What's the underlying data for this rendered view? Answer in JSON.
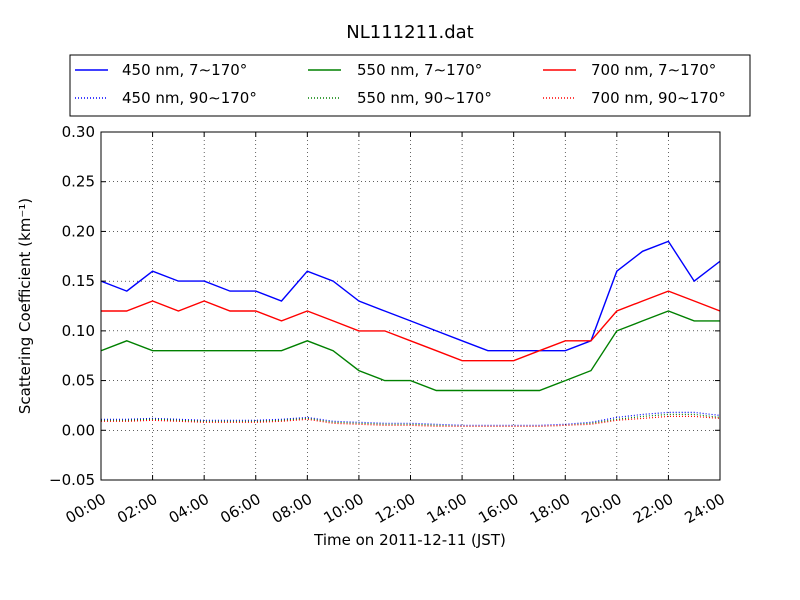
{
  "chart_data": {
    "type": "line",
    "title": "NL111211.dat",
    "xlabel": "Time on 2011-12-11 (JST)",
    "ylabel": "Scattering Coefficient (km⁻¹)",
    "xlim": [
      "00:00",
      "24:00"
    ],
    "ylim": [
      -0.05,
      0.3
    ],
    "grid": true,
    "legend_placement": "top",
    "x_ticks": [
      "00:00",
      "02:00",
      "04:00",
      "06:00",
      "08:00",
      "10:00",
      "12:00",
      "14:00",
      "16:00",
      "18:00",
      "20:00",
      "22:00",
      "24:00"
    ],
    "y_ticks": [
      "−0.05",
      "0.00",
      "0.05",
      "0.10",
      "0.15",
      "0.20",
      "0.25",
      "0.30"
    ],
    "x_hours": [
      0,
      1,
      2,
      3,
      4,
      5,
      6,
      7,
      8,
      9,
      10,
      11,
      12,
      13,
      14,
      15,
      16,
      17,
      18,
      19,
      20,
      21,
      22,
      23,
      24
    ],
    "series": [
      {
        "name": "450 nm, 7∼170°",
        "color": "#0000ff",
        "style": "solid",
        "values": [
          0.15,
          0.14,
          0.16,
          0.15,
          0.15,
          0.14,
          0.14,
          0.13,
          0.16,
          0.15,
          0.13,
          0.12,
          0.11,
          0.1,
          0.09,
          0.08,
          0.08,
          0.08,
          0.08,
          0.09,
          0.16,
          0.18,
          0.19,
          0.15,
          0.17
        ]
      },
      {
        "name": "550 nm, 7∼170°",
        "color": "#008000",
        "style": "solid",
        "values": [
          0.08,
          0.09,
          0.08,
          0.08,
          0.08,
          0.08,
          0.08,
          0.08,
          0.09,
          0.08,
          0.06,
          0.05,
          0.05,
          0.04,
          0.04,
          0.04,
          0.04,
          0.04,
          0.05,
          0.06,
          0.1,
          0.11,
          0.12,
          0.11,
          0.11
        ]
      },
      {
        "name": "700 nm, 7∼170°",
        "color": "#ff0000",
        "style": "solid",
        "values": [
          0.12,
          0.12,
          0.13,
          0.12,
          0.13,
          0.12,
          0.12,
          0.11,
          0.12,
          0.11,
          0.1,
          0.1,
          0.09,
          0.08,
          0.07,
          0.07,
          0.07,
          0.08,
          0.09,
          0.09,
          0.12,
          0.13,
          0.14,
          0.13,
          0.12
        ]
      },
      {
        "name": "450 nm, 90∼170°",
        "color": "#0000ff",
        "style": "dotted",
        "values": [
          0.011,
          0.011,
          0.012,
          0.011,
          0.01,
          0.01,
          0.01,
          0.011,
          0.013,
          0.009,
          0.008,
          0.007,
          0.007,
          0.006,
          0.005,
          0.005,
          0.005,
          0.005,
          0.006,
          0.008,
          0.013,
          0.016,
          0.018,
          0.018,
          0.015
        ]
      },
      {
        "name": "550 nm, 90∼170°",
        "color": "#008000",
        "style": "dotted",
        "values": [
          0.01,
          0.01,
          0.011,
          0.01,
          0.009,
          0.009,
          0.009,
          0.01,
          0.012,
          0.008,
          0.007,
          0.006,
          0.006,
          0.005,
          0.004,
          0.004,
          0.004,
          0.004,
          0.005,
          0.007,
          0.011,
          0.014,
          0.016,
          0.016,
          0.013
        ]
      },
      {
        "name": "700 nm, 90∼170°",
        "color": "#ff0000",
        "style": "dotted",
        "values": [
          0.009,
          0.009,
          0.01,
          0.009,
          0.008,
          0.008,
          0.008,
          0.009,
          0.011,
          0.007,
          0.006,
          0.005,
          0.005,
          0.004,
          0.004,
          0.004,
          0.004,
          0.004,
          0.005,
          0.006,
          0.01,
          0.012,
          0.014,
          0.014,
          0.012
        ]
      }
    ]
  }
}
